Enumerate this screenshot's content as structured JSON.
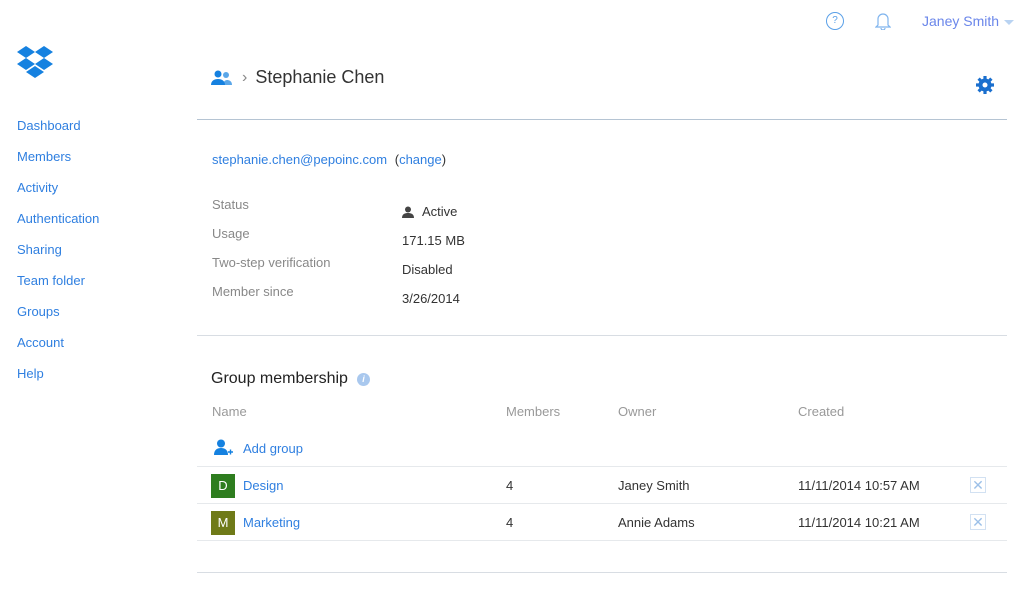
{
  "header": {
    "user_name": "Janey Smith",
    "help_label": "?"
  },
  "sidebar": {
    "items": [
      {
        "label": "Dashboard"
      },
      {
        "label": "Members"
      },
      {
        "label": "Activity"
      },
      {
        "label": "Authentication"
      },
      {
        "label": "Sharing"
      },
      {
        "label": "Team folder"
      },
      {
        "label": "Groups"
      },
      {
        "label": "Account"
      },
      {
        "label": "Help"
      }
    ]
  },
  "breadcrumb": {
    "separator": "›",
    "title": "Stephanie Chen"
  },
  "member": {
    "email": "stephanie.chen@pepoinc.com",
    "change_prefix": "(",
    "change_label": "change",
    "change_suffix": ")",
    "fields": [
      {
        "label": "Status",
        "value": "Active"
      },
      {
        "label": "Usage",
        "value": "171.15 MB"
      },
      {
        "label": "Two-step verification",
        "value": "Disabled"
      },
      {
        "label": "Member since",
        "value": "3/26/2014"
      }
    ]
  },
  "groups": {
    "title": "Group membership",
    "info_label": "i",
    "columns": [
      "Name",
      "Members",
      "Owner",
      "Created"
    ],
    "add_label": "Add group",
    "rows": [
      {
        "initial": "D",
        "name": "Design",
        "members": "4",
        "owner": "Janey Smith",
        "created": "11/11/2014 10:57 AM",
        "color": "#2e7d1f",
        "remove": "✕"
      },
      {
        "initial": "M",
        "name": "Marketing",
        "members": "4",
        "owner": "Annie Adams",
        "created": "11/11/2014 10:21 AM",
        "color": "#6f7a18",
        "remove": "✕"
      }
    ]
  }
}
